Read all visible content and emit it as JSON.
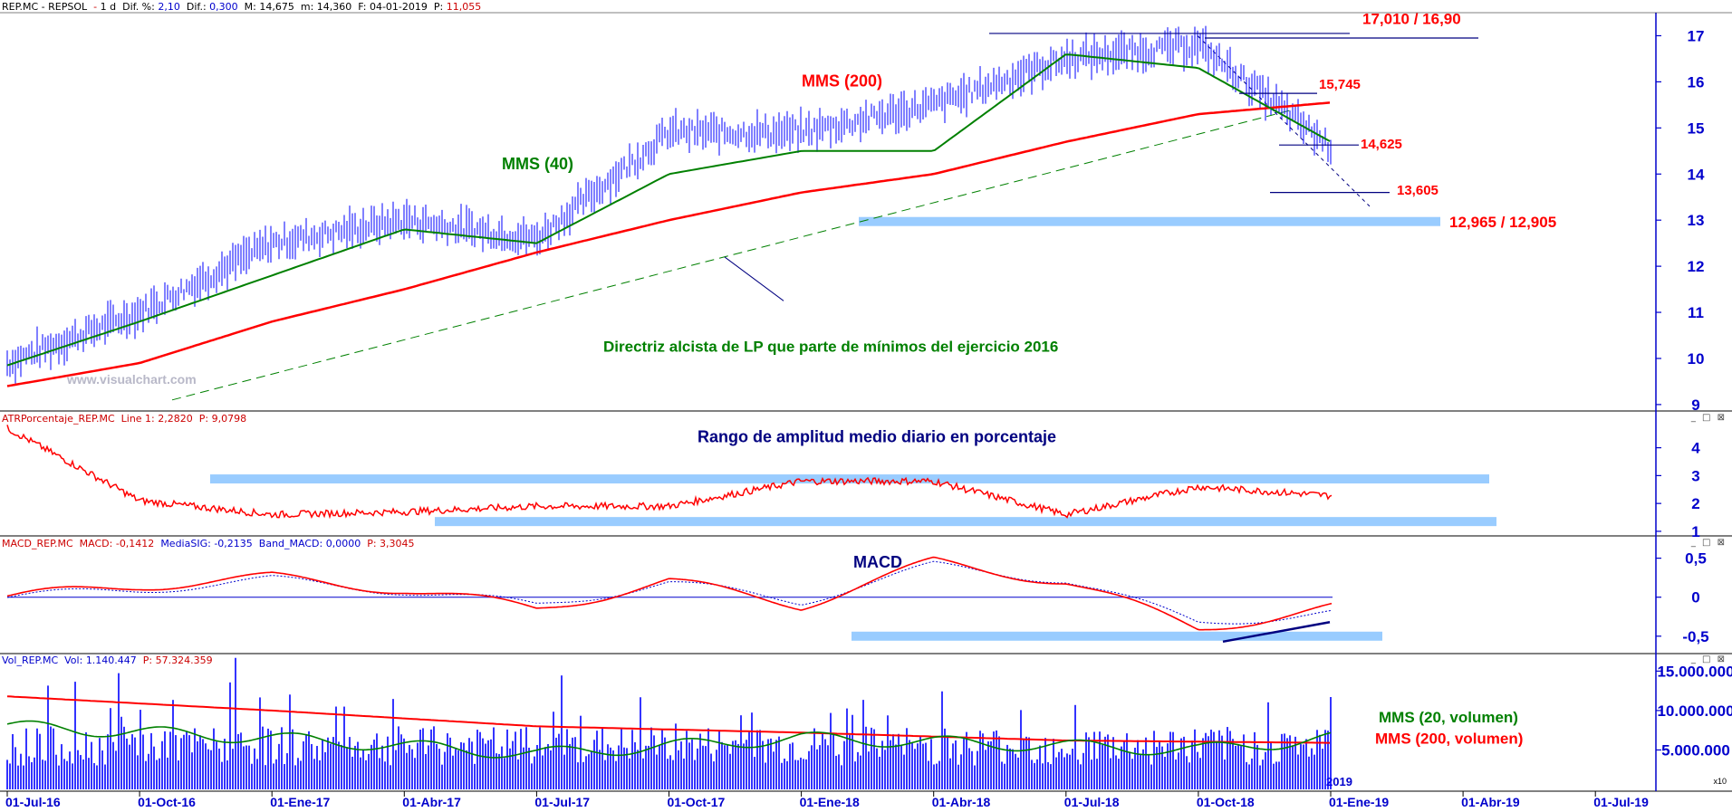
{
  "panels": {
    "price": {
      "symbol": "REP.MC - REPSOL",
      "period": "1 d",
      "dif_pct_label": "Dif. %:",
      "dif_pct": "2,10",
      "dif_label": "Dif.:",
      "dif": "0,300",
      "max_label": "M:",
      "max": "14,675",
      "min_label": "m:",
      "min": "14,360",
      "date_label": "F:",
      "date": "04-01-2019",
      "p_label": "P:",
      "p": "11,055"
    },
    "atr": {
      "header": "ATRPorcentaje_REP.MC",
      "line_label": "Line 1:",
      "line_value": "2,2820",
      "p_label": "P:",
      "p": "9,0798"
    },
    "macd": {
      "header": "MACD_REP.MC",
      "macd_label": "MACD:",
      "macd": "-0,1412",
      "sig_label": "MediaSIG:",
      "sig": "-0,2135",
      "band_label": "Band_MACD:",
      "band": "0,0000",
      "p_label": "P:",
      "p": "3,3045"
    },
    "vol": {
      "header": "Vol_REP.MC",
      "vol_label": "Vol:",
      "vol": "1.140.447",
      "p_label": "P:",
      "p": "57.324.359"
    }
  },
  "window_controls": "_ □ ⊠",
  "watermark": "www.visualchart.com",
  "colors": {
    "price_bars": "#0000ff",
    "mms40": "#008000",
    "mms200": "#ff0000",
    "band": "#99ccff",
    "axis": "#0000cc",
    "annotation_red": "#ff0000",
    "annotation_green": "#008000",
    "annotation_navy": "#000080"
  },
  "chart_data": [
    {
      "type": "line",
      "panel": "price",
      "x_ticks": [
        "01-Jul-16",
        "01-Oct-16",
        "01-Ene-17",
        "01-Abr-17",
        "01-Jul-17",
        "01-Oct-17",
        "01-Ene-18",
        "01-Abr-18",
        "01-Jul-18",
        "01-Oct-18",
        "01-Ene-19",
        "01-Abr-19",
        "01-Jul-19"
      ],
      "x_extra_label": "2019",
      "y_ticks": [
        9,
        10,
        11,
        12,
        13,
        14,
        15,
        16,
        17
      ],
      "ylim": [
        8.9,
        17.5
      ],
      "series": [
        {
          "name": "MMS (200)",
          "points": [
            [
              "01-Jul-16",
              9.4
            ],
            [
              "01-Oct-16",
              9.9
            ],
            [
              "01-Ene-17",
              10.8
            ],
            [
              "01-Abr-17",
              11.5
            ],
            [
              "01-Jul-17",
              12.3
            ],
            [
              "01-Oct-17",
              13.0
            ],
            [
              "01-Ene-18",
              13.6
            ],
            [
              "01-Abr-18",
              14.0
            ],
            [
              "01-Jul-18",
              14.7
            ],
            [
              "01-Oct-18",
              15.3
            ],
            [
              "01-Ene-19",
              15.55
            ]
          ]
        },
        {
          "name": "MMS (40)",
          "points": [
            [
              "01-Jul-16",
              9.85
            ],
            [
              "01-Oct-16",
              10.8
            ],
            [
              "01-Ene-17",
              11.8
            ],
            [
              "01-Abr-17",
              12.8
            ],
            [
              "01-Jul-17",
              12.5
            ],
            [
              "01-Oct-17",
              14.0
            ],
            [
              "01-Ene-18",
              14.5
            ],
            [
              "01-Abr-18",
              14.5
            ],
            [
              "01-Jul-18",
              16.6
            ],
            [
              "01-Oct-18",
              16.3
            ],
            [
              "01-Ene-19",
              14.7
            ]
          ]
        },
        {
          "name": "Price",
          "points": [
            [
              "01-Jul-16",
              9.9
            ],
            [
              "01-Oct-16",
              11.0
            ],
            [
              "01-Ene-17",
              12.5
            ],
            [
              "01-Abr-17",
              13.0
            ],
            [
              "01-Jul-17",
              12.6
            ],
            [
              "01-Oct-17",
              14.9
            ],
            [
              "01-Ene-18",
              14.9
            ],
            [
              "01-Abr-18",
              15.5
            ],
            [
              "01-Jul-18",
              16.5
            ],
            [
              "01-Oct-18",
              16.8
            ],
            [
              "01-Ene-19",
              14.6
            ]
          ]
        }
      ],
      "annotations": {
        "mms200_label": "MMS (200)",
        "mms40_label": "MMS (40)",
        "trendline_label": "Directriz alcista de LP que parte de mínimos del ejercicio 2016",
        "levels": [
          "17,010 / 16,90",
          "15,745",
          "14,625",
          "13,605",
          "12,965 / 12,905"
        ]
      }
    },
    {
      "type": "line",
      "panel": "atr",
      "title": "Rango de amplitud medio diario en porcentaje",
      "y_ticks": [
        1,
        2,
        3,
        4
      ],
      "ylim": [
        0.9,
        4.8
      ],
      "series": [
        {
          "name": "Line 1",
          "points": [
            [
              "01-Jul-16",
              4.7
            ],
            [
              "01-Oct-16",
              2.1
            ],
            [
              "01-Ene-17",
              1.6
            ],
            [
              "01-Abr-17",
              1.7
            ],
            [
              "01-Jul-17",
              1.9
            ],
            [
              "01-Oct-17",
              1.9
            ],
            [
              "01-Ene-18",
              2.8
            ],
            [
              "01-Abr-18",
              2.8
            ],
            [
              "01-Jul-18",
              1.6
            ],
            [
              "01-Oct-18",
              2.6
            ],
            [
              "01-Ene-19",
              2.28
            ]
          ]
        }
      ]
    },
    {
      "type": "line",
      "panel": "macd",
      "title": "MACD",
      "y_ticks": [
        0.5,
        0,
        -0.5
      ],
      "y_tick_labels": [
        "0,5",
        "0",
        "-0,5"
      ],
      "ylim": [
        -0.7,
        0.6
      ],
      "series": [
        {
          "name": "MACD",
          "points": [
            [
              "01-Jul-16",
              0.0
            ],
            [
              "01-Oct-16",
              0.15
            ],
            [
              "01-Ene-17",
              0.25
            ],
            [
              "01-Abr-17",
              0.1
            ],
            [
              "01-Jul-17",
              -0.15
            ],
            [
              "01-Oct-17",
              0.2
            ],
            [
              "01-Ene-18",
              -0.1
            ],
            [
              "01-Abr-18",
              0.45
            ],
            [
              "01-Jul-18",
              0.2
            ],
            [
              "01-Oct-18",
              -0.4
            ],
            [
              "01-Ene-19",
              -0.14
            ]
          ]
        },
        {
          "name": "MediaSIG",
          "points": [
            [
              "01-Jul-16",
              0.0
            ],
            [
              "01-Oct-16",
              0.1
            ],
            [
              "01-Ene-17",
              0.22
            ],
            [
              "01-Abr-17",
              0.08
            ],
            [
              "01-Jul-17",
              -0.1
            ],
            [
              "01-Oct-17",
              0.18
            ],
            [
              "01-Ene-18",
              -0.05
            ],
            [
              "01-Abr-18",
              0.4
            ],
            [
              "01-Jul-18",
              0.22
            ],
            [
              "01-Oct-18",
              -0.32
            ],
            [
              "01-Ene-19",
              -0.21
            ]
          ]
        }
      ]
    },
    {
      "type": "bar",
      "panel": "volume",
      "y_ticks": [
        5000000,
        10000000,
        15000000
      ],
      "y_tick_labels": [
        "5.000.000",
        "10.000.000",
        "15.000.000"
      ],
      "ylim": [
        0,
        15500000
      ],
      "scale_note": "x10",
      "series": [
        {
          "name": "MMS (20, volumen)",
          "points": [
            [
              "01-Jul-16",
              8000000
            ],
            [
              "01-Ene-17",
              6500000
            ],
            [
              "01-Jul-17",
              4500000
            ],
            [
              "01-Ene-18",
              6500000
            ],
            [
              "01-Jul-18",
              5500000
            ],
            [
              "01-Oct-18",
              5000000
            ],
            [
              "01-Ene-19",
              6500000
            ]
          ]
        },
        {
          "name": "MMS (200, volumen)",
          "points": [
            [
              "01-Jul-16",
              11800000
            ],
            [
              "01-Ene-17",
              10000000
            ],
            [
              "01-Jul-17",
              8000000
            ],
            [
              "01-Ene-18",
              7200000
            ],
            [
              "01-Jul-18",
              6200000
            ],
            [
              "01-Ene-19",
              5900000
            ]
          ]
        }
      ],
      "annotations": {
        "mms20_label": "MMS (20, volumen)",
        "mms200_label": "MMS (200, volumen)"
      }
    }
  ]
}
